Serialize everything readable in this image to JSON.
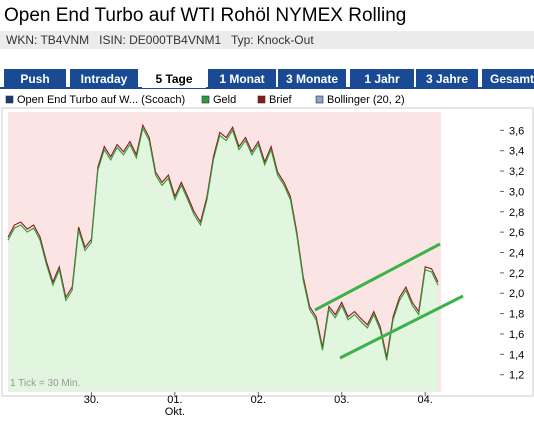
{
  "header": {
    "title": "Open End Turbo auf WTI Rohöl NYMEX Rolling",
    "subtitle": "WKN: TB4VNM   ISIN: DE000TB4VNM1   Typ: Knock-Out"
  },
  "tabs": {
    "items": [
      "Push",
      "Intraday",
      "5 Tage",
      "1 Monat",
      "3 Monate",
      "1 Jahr",
      "3 Jahre",
      "Gesamt"
    ],
    "active": 2
  },
  "chart_data": {
    "type": "line",
    "legend_extra": [
      {
        "name": "Open End Turbo auf W... (Scoach)",
        "color": "#1f3a7a"
      },
      {
        "name": "Bollinger (20, 2)",
        "color": "#8fa2c8"
      }
    ],
    "categories": [
      null,
      null,
      null,
      null,
      null,
      null,
      null,
      null,
      null,
      null,
      null,
      null,
      null,
      "30.",
      null,
      null,
      null,
      null,
      null,
      null,
      null,
      null,
      null,
      null,
      null,
      null,
      "01.",
      null,
      null,
      null,
      null,
      null,
      null,
      null,
      null,
      null,
      null,
      null,
      null,
      "02.",
      null,
      null,
      null,
      null,
      null,
      null,
      null,
      null,
      null,
      null,
      null,
      null,
      "03.",
      null,
      null,
      null,
      null,
      null,
      null,
      null,
      null,
      null,
      null,
      null,
      null,
      "04.",
      null,
      null
    ],
    "month_label": "Okt.",
    "annotation": "1 Tick = 30 Min.",
    "ylim": [
      1.03,
      3.78
    ],
    "yticks": [
      {
        "value": 1.2,
        "label": "1,2"
      },
      {
        "value": 1.4,
        "label": "1,4"
      },
      {
        "value": 1.6,
        "label": "1,6"
      },
      {
        "value": 1.8,
        "label": "1,8"
      },
      {
        "value": 2.0,
        "label": "2,0"
      },
      {
        "value": 2.2,
        "label": "2,2"
      },
      {
        "value": 2.4,
        "label": "2,4"
      },
      {
        "value": 2.6,
        "label": "2,6"
      },
      {
        "value": 2.8,
        "label": "2,8"
      },
      {
        "value": 3.0,
        "label": "3,0"
      },
      {
        "value": 3.2,
        "label": "3,2"
      },
      {
        "value": 3.4,
        "label": "3,4"
      },
      {
        "value": 3.6,
        "label": "3,6"
      }
    ],
    "series": [
      {
        "name": "Geld",
        "color": "#2e9a3a",
        "values": [
          2.52,
          2.64,
          2.67,
          2.6,
          2.64,
          2.52,
          2.28,
          2.08,
          2.23,
          1.93,
          2.03,
          2.62,
          2.42,
          2.5,
          3.21,
          3.41,
          3.31,
          3.43,
          3.36,
          3.46,
          3.33,
          3.62,
          3.5,
          3.16,
          3.06,
          3.13,
          2.92,
          3.06,
          2.92,
          2.77,
          2.67,
          2.92,
          3.31,
          3.55,
          3.5,
          3.6,
          3.41,
          3.5,
          3.36,
          3.46,
          3.26,
          3.41,
          3.16,
          3.06,
          2.92,
          2.57,
          2.13,
          1.84,
          1.74,
          1.44,
          1.84,
          1.76,
          1.88,
          1.74,
          1.79,
          1.72,
          1.66,
          1.79,
          1.64,
          1.34,
          1.74,
          1.93,
          2.03,
          1.88,
          1.79,
          2.23,
          2.21,
          2.08
        ]
      },
      {
        "name": "Brief",
        "color": "#8b1a1a",
        "values": [
          2.55,
          2.67,
          2.7,
          2.63,
          2.67,
          2.55,
          2.31,
          2.11,
          2.26,
          1.96,
          2.06,
          2.65,
          2.45,
          2.53,
          3.24,
          3.44,
          3.34,
          3.46,
          3.39,
          3.49,
          3.36,
          3.65,
          3.53,
          3.19,
          3.09,
          3.16,
          2.95,
          3.09,
          2.95,
          2.8,
          2.7,
          2.95,
          3.34,
          3.58,
          3.53,
          3.63,
          3.44,
          3.53,
          3.39,
          3.49,
          3.29,
          3.44,
          3.19,
          3.09,
          2.95,
          2.6,
          2.16,
          1.87,
          1.77,
          1.47,
          1.87,
          1.79,
          1.91,
          1.77,
          1.82,
          1.75,
          1.69,
          1.82,
          1.67,
          1.37,
          1.77,
          1.96,
          2.06,
          1.91,
          1.82,
          2.26,
          2.24,
          2.11
        ]
      }
    ]
  }
}
